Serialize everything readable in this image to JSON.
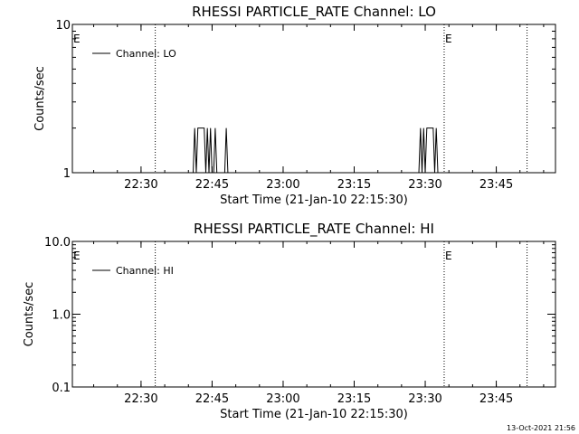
{
  "timestamp": "13-Oct-2021 21:56",
  "chart_data": [
    {
      "type": "line",
      "title": "RHESSI PARTICLE_RATE Channel: LO",
      "xlabel": "Start Time (21-Jan-10 22:15:30)",
      "ylabel": "Counts/sec",
      "yscale": "log",
      "xlim": [
        "22:15:30",
        "23:57:30"
      ],
      "ylim": [
        1,
        10
      ],
      "x_ticks": [
        "22:30",
        "22:45",
        "23:00",
        "23:15",
        "23:30",
        "23:45"
      ],
      "y_ticks": [
        "1",
        "10"
      ],
      "legend": "Channel: LO",
      "legend_position": "top-left",
      "event_markers": [
        {
          "time": "22:15:30",
          "label": "E"
        },
        {
          "time": "22:33:00",
          "label": ""
        },
        {
          "time": "23:34:00",
          "label": "E"
        },
        {
          "time": "23:51:30",
          "label": ""
        }
      ],
      "series": [
        {
          "values": [
            [
              "22:41:00",
              1
            ],
            [
              "22:41:20",
              2
            ],
            [
              "22:41:40",
              1
            ],
            [
              "22:42:00",
              2
            ],
            [
              "22:43:20",
              2
            ],
            [
              "22:43:40",
              1
            ],
            [
              "22:44:00",
              2
            ],
            [
              "22:44:20",
              1
            ],
            [
              "22:44:40",
              2
            ],
            [
              "22:45:00",
              1
            ],
            [
              "22:45:20",
              1
            ],
            [
              "22:45:40",
              2
            ],
            [
              "22:46:00",
              1
            ],
            [
              "22:47:40",
              1
            ],
            [
              "22:48:00",
              2
            ],
            [
              "22:48:20",
              1
            ],
            [
              "23:28:40",
              1
            ],
            [
              "23:29:00",
              2
            ],
            [
              "23:29:20",
              1
            ],
            [
              "23:29:40",
              2
            ],
            [
              "23:30:00",
              1
            ],
            [
              "23:30:20",
              2
            ],
            [
              "23:31:40",
              2
            ],
            [
              "23:32:00",
              1
            ],
            [
              "23:32:20",
              2
            ],
            [
              "23:32:40",
              1
            ]
          ]
        }
      ]
    },
    {
      "type": "line",
      "title": "RHESSI PARTICLE_RATE Channel: HI",
      "xlabel": "Start Time (21-Jan-10 22:15:30)",
      "ylabel": "Counts/sec",
      "yscale": "log",
      "xlim": [
        "22:15:30",
        "23:57:30"
      ],
      "ylim": [
        0.1,
        10
      ],
      "x_ticks": [
        "22:30",
        "22:45",
        "23:00",
        "23:15",
        "23:30",
        "23:45"
      ],
      "y_ticks": [
        "0.1",
        "1.0",
        "10.0"
      ],
      "legend": "Channel: HI",
      "legend_position": "top-left",
      "event_markers": [
        {
          "time": "22:15:30",
          "label": "E"
        },
        {
          "time": "22:33:00",
          "label": ""
        },
        {
          "time": "23:34:00",
          "label": "E"
        },
        {
          "time": "23:51:30",
          "label": ""
        }
      ],
      "series": [
        {
          "values": []
        }
      ]
    }
  ]
}
